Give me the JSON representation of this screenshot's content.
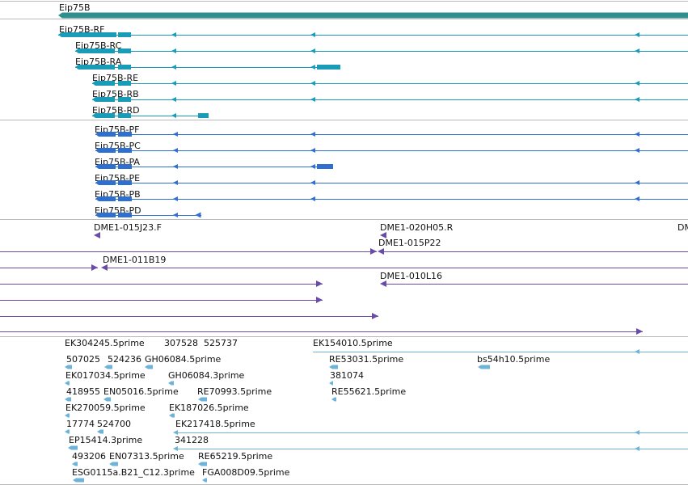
{
  "gene": {
    "label": "Eip75B",
    "color": "#2f8f8f"
  },
  "tracks": [
    {
      "name": "flybase-transcripts",
      "color": "#1a9cb8",
      "items": [
        {
          "label": "Eip75B-RF",
          "row": 0
        },
        {
          "label": "Eip75B-RC",
          "row": 1
        },
        {
          "label": "Eip75B-RA",
          "row": 2
        },
        {
          "label": "Eip75B-RE",
          "row": 3
        },
        {
          "label": "Eip75B-RB",
          "row": 4
        },
        {
          "label": "Eip75B-RD",
          "row": 5
        }
      ]
    },
    {
      "name": "flybase-proteins",
      "color": "#2e6fd0",
      "items": [
        {
          "label": "Eip75B-PF",
          "row": 0
        },
        {
          "label": "Eip75B-PC",
          "row": 1
        },
        {
          "label": "Eip75B-PA",
          "row": 2
        },
        {
          "label": "Eip75B-PE",
          "row": 3
        },
        {
          "label": "Eip75B-PB",
          "row": 4
        },
        {
          "label": "Eip75B-PD",
          "row": 5
        }
      ]
    },
    {
      "name": "bac-clones",
      "color": "#6b4ba8",
      "items": [
        {
          "label": "DME1-015J23.F"
        },
        {
          "label": "DME1-020H05.R"
        },
        {
          "label": "DM"
        },
        {
          "label": "DME1-015P22"
        },
        {
          "label": "DME1-011B19"
        },
        {
          "label": "DME1-010L16"
        }
      ]
    },
    {
      "name": "est-alignments",
      "color": "#6fb3d8",
      "items": [
        {
          "label": "EK304245.5prime"
        },
        {
          "label": "307528"
        },
        {
          "label": "525737"
        },
        {
          "label": "EK154010.5prime"
        },
        {
          "label": "507025"
        },
        {
          "label": "524236"
        },
        {
          "label": "GH06084.5prime"
        },
        {
          "label": "RE53031.5prime"
        },
        {
          "label": "bs54h10.5prime"
        },
        {
          "label": "EK017034.5prime"
        },
        {
          "label": "GH06084.3prime"
        },
        {
          "label": "381074"
        },
        {
          "label": "418955"
        },
        {
          "label": "EN05016.5prime"
        },
        {
          "label": "RE70993.5prime"
        },
        {
          "label": "RE55621.5prime"
        },
        {
          "label": "EK270059.5prime"
        },
        {
          "label": "EK187026.5prime"
        },
        {
          "label": "17774"
        },
        {
          "label": "524700"
        },
        {
          "label": "EK217418.5prime"
        },
        {
          "label": "EP15414.3prime"
        },
        {
          "label": "341228"
        },
        {
          "label": "493206"
        },
        {
          "label": "EN07313.5prime"
        },
        {
          "label": "RE65219.5prime"
        },
        {
          "label": "ESG0115a.B21_C12.3prime"
        },
        {
          "label": "FGA008D09.5prime"
        }
      ]
    }
  ]
}
